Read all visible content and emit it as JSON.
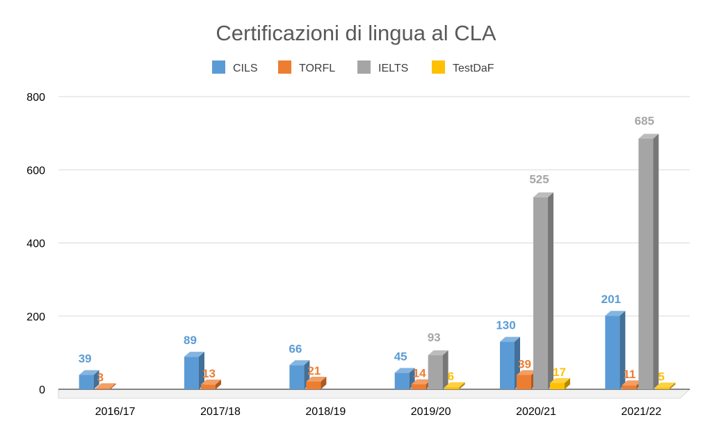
{
  "chart_data": {
    "type": "bar",
    "title": "Certificazioni di lingua al CLA",
    "xlabel": "",
    "ylabel": "",
    "ylim": [
      0,
      800
    ],
    "yticks": [
      0,
      200,
      400,
      600,
      800
    ],
    "grid": true,
    "legend_position": "top",
    "categories": [
      "2016/17",
      "2017/18",
      "2018/19",
      "2019/20",
      "2020/21",
      "2021/22"
    ],
    "series": [
      {
        "name": "CILS",
        "color": "#5b9bd5",
        "values": [
          39,
          89,
          66,
          45,
          130,
          201
        ]
      },
      {
        "name": "TORFL",
        "color": "#ed7d31",
        "values": [
          3,
          13,
          21,
          14,
          39,
          11
        ]
      },
      {
        "name": "IELTS",
        "color": "#a5a5a5",
        "values": [
          null,
          null,
          null,
          93,
          525,
          685
        ]
      },
      {
        "name": "TestDaF",
        "color": "#ffc000",
        "values": [
          null,
          null,
          null,
          6,
          17,
          5
        ]
      }
    ]
  }
}
